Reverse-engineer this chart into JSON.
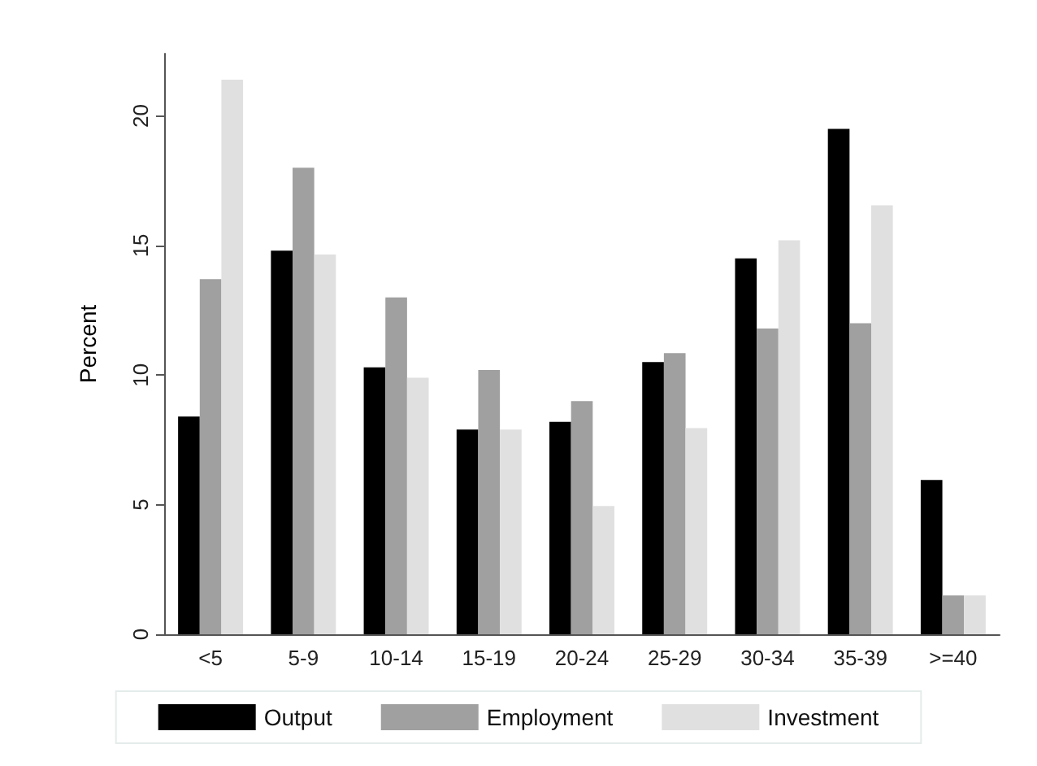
{
  "chart_data": {
    "type": "bar",
    "ylabel": "Percent",
    "categories": [
      "<5",
      "5-9",
      "10-14",
      "15-19",
      "20-24",
      "25-29",
      "30-34",
      "35-39",
      ">=40"
    ],
    "series": [
      {
        "name": "Output",
        "color": "#000000",
        "values": [
          8.4,
          14.8,
          10.3,
          7.9,
          8.2,
          10.5,
          14.5,
          19.5,
          5.95
        ]
      },
      {
        "name": "Employment",
        "color": "#a0a0a0",
        "values": [
          13.7,
          18.0,
          13.0,
          10.2,
          9.0,
          10.85,
          11.8,
          12.0,
          1.5
        ]
      },
      {
        "name": "Investment",
        "color": "#e0e0e0",
        "values": [
          21.4,
          14.65,
          9.9,
          7.9,
          4.95,
          7.95,
          15.2,
          16.55,
          1.5
        ]
      }
    ],
    "ylim": [
      0,
      22.4
    ],
    "yticks": [
      0,
      5,
      10,
      15,
      20
    ],
    "grid": false,
    "legend": "bottom"
  }
}
